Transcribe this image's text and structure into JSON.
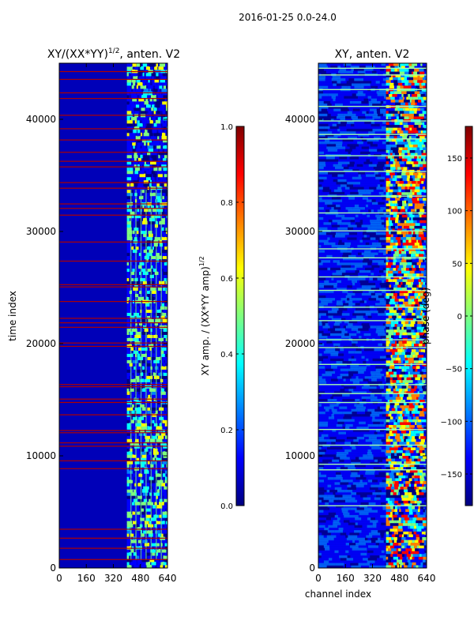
{
  "suptitle": "2016-01-25 0.0-24.0",
  "colors": {
    "jet": [
      "#00007f",
      "#0000ff",
      "#007fff",
      "#00ffff",
      "#7fff7f",
      "#ffff00",
      "#ff7f00",
      "#ff0000",
      "#7f0000"
    ],
    "frame": "#000000",
    "background": "#ffffff"
  },
  "chart_data": [
    {
      "type": "heatmap",
      "title_base": "XY/(XX*YY)",
      "title_exp": "1/2",
      "title_tail": ", anten. V2",
      "xlabel": "",
      "ylabel": "time index",
      "xlim": [
        0,
        640
      ],
      "ylim": [
        0,
        45000
      ],
      "xticks": [
        "0",
        "160",
        "320",
        "480",
        "640"
      ],
      "xtick_values": [
        0,
        160,
        320,
        480,
        640
      ],
      "yticks": [
        "0",
        "10000",
        "20000",
        "30000",
        "40000"
      ],
      "ytick_values": [
        0,
        10000,
        20000,
        30000,
        40000
      ],
      "colorbar": {
        "label_base": "XY amp. / (XX*YY amp)",
        "label_exp": "1/2",
        "range": [
          0.0,
          1.0
        ],
        "ticks": [
          "0.0",
          "0.2",
          "0.4",
          "0.6",
          "0.8",
          "1.0"
        ],
        "tick_values": [
          0.0,
          0.2,
          0.4,
          0.6,
          0.8,
          1.0
        ]
      },
      "active_band_channels": [
        400,
        640
      ],
      "band_channels": [
        420,
        450,
        480,
        510,
        540,
        570,
        600
      ],
      "flagged_rows": [
        800,
        1800,
        2700,
        3500,
        8900,
        9600,
        10900,
        11200,
        12100,
        12300,
        13700,
        14800,
        15100,
        16200,
        16400,
        19800,
        20100,
        21500,
        21900,
        22300,
        23800,
        25100,
        25300,
        27400,
        29100,
        31500,
        32100,
        32500,
        33900,
        34400,
        35800,
        36300,
        37100,
        38200,
        39200,
        40400,
        41900,
        42400,
        43600,
        44300
      ]
    },
    {
      "type": "heatmap",
      "title": "XY, anten. V2",
      "xlabel": "channel index",
      "ylabel": "",
      "xlim": [
        0,
        640
      ],
      "ylim": [
        0,
        45000
      ],
      "xticks": [
        "0",
        "160",
        "320",
        "480",
        "640"
      ],
      "xtick_values": [
        0,
        160,
        320,
        480,
        640
      ],
      "yticks": [
        "0",
        "10000",
        "20000",
        "30000",
        "40000"
      ],
      "ytick_values": [
        0,
        10000,
        20000,
        30000,
        40000
      ],
      "colorbar": {
        "label": "phase (deg)",
        "range": [
          -180,
          180
        ],
        "ticks": [
          "−150",
          "−100",
          "−50",
          "0",
          "50",
          "100",
          "150"
        ],
        "tick_values": [
          -150,
          -100,
          -50,
          0,
          50,
          100,
          150
        ]
      },
      "active_band_channels": [
        400,
        620
      ],
      "flagged_rows": [
        5600,
        8800,
        9300,
        11000,
        12400,
        14800,
        15600,
        16400,
        18200,
        19700,
        20400,
        22100,
        23300,
        24800,
        26000,
        27700,
        28500,
        30100,
        31700,
        33200,
        35400,
        36800,
        38300,
        38700,
        39900,
        41200,
        42700,
        44000,
        44600
      ]
    }
  ]
}
